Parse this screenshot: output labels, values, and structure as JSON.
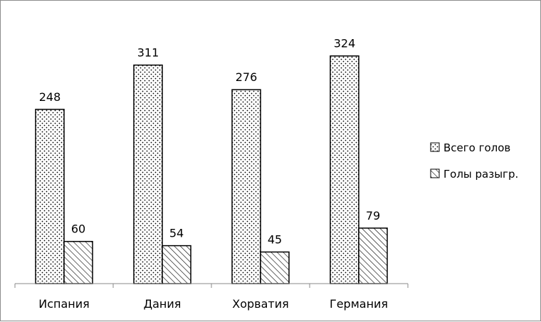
{
  "chart_data": {
    "type": "bar",
    "categories": [
      "Испания",
      "Дания",
      "Хорватия",
      "Германия"
    ],
    "series": [
      {
        "name": "Всего голов",
        "values": [
          248,
          311,
          276,
          324
        ],
        "pattern": "dots"
      },
      {
        "name": "Голы разыгр.",
        "values": [
          60,
          54,
          45,
          79
        ],
        "pattern": "hatch"
      }
    ],
    "title": "",
    "xlabel": "",
    "ylabel": "",
    "ylim": [
      0,
      350
    ],
    "grid": false,
    "data_labels": true,
    "legend_position": "right",
    "colors": {
      "fill": "#ffffff",
      "stroke": "#000000",
      "pattern": "#000000"
    }
  }
}
